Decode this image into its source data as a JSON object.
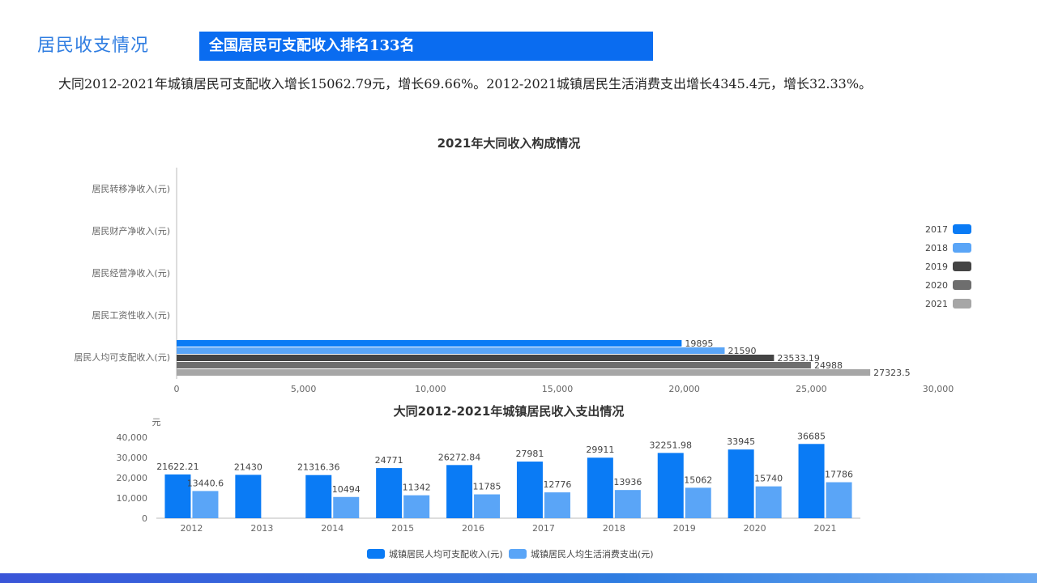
{
  "header": {
    "section_title": "居民收支情况",
    "banner": "全国居民可支配收入排名133名"
  },
  "summary": "大同2012-2021年城镇居民可支配收入增长15062.79元，增长69.66%。2012-2021城镇居民生活消费支出增长4345.4元，增长32.33%。",
  "colors": {
    "accent": "#2f7de1",
    "banner": "#0a6cf0",
    "series_income": "#0a7bf5",
    "series_expense": "#5aa5f7"
  },
  "chart_data": [
    {
      "type": "bar",
      "orientation": "horizontal",
      "title": "2021年大同收入构成情况",
      "categories": [
        "居民人均可支配收入(元)",
        "居民工资性收入(元)",
        "居民经营净收入(元)",
        "居民财产净收入(元)",
        "居民转移净收入(元)"
      ],
      "series": [
        {
          "name": "2017",
          "color": "#0a7bf5",
          "values": [
            19895,
            null,
            null,
            null,
            null
          ],
          "labels": [
            "19895"
          ]
        },
        {
          "name": "2018",
          "color": "#5aa5f7",
          "values": [
            21590,
            null,
            null,
            null,
            null
          ],
          "labels": [
            "21590"
          ]
        },
        {
          "name": "2019",
          "color": "#444444",
          "values": [
            23533.19,
            null,
            null,
            null,
            null
          ],
          "labels": [
            "23533.19"
          ]
        },
        {
          "name": "2020",
          "color": "#6e6e6e",
          "values": [
            24988,
            null,
            null,
            null,
            null
          ],
          "labels": [
            "24988"
          ]
        },
        {
          "name": "2021",
          "color": "#a6a6a6",
          "values": [
            27323.5,
            null,
            null,
            null,
            null
          ],
          "labels": [
            "27323.5"
          ]
        }
      ],
      "xlim": [
        0,
        30000
      ],
      "xticks": [
        "0",
        "5,000",
        "10,000",
        "15,000",
        "20,000",
        "25,000",
        "30,000"
      ],
      "legend": "right"
    },
    {
      "type": "bar",
      "title": "大同2012-2021年城镇居民收入支出情况",
      "yunit": "元",
      "categories": [
        "2012",
        "2013",
        "2014",
        "2015",
        "2016",
        "2017",
        "2018",
        "2019",
        "2020",
        "2021"
      ],
      "series": [
        {
          "name": "城镇居民人均可支配收入(元)",
          "color": "#0a7bf5",
          "values": [
            21622.21,
            21430,
            21316.36,
            24771,
            26272.84,
            27981,
            29911,
            32251.98,
            33945,
            36685
          ],
          "labels": [
            "21622.21",
            "21430",
            "21316.36",
            "24771",
            "26272.84",
            "27981",
            "29911",
            "32251.98",
            "33945",
            "36685"
          ]
        },
        {
          "name": "城镇居民人均生活消费支出(元)",
          "color": "#5aa5f7",
          "values": [
            13440.6,
            null,
            10494,
            11342,
            11785,
            12776,
            13936,
            15062,
            15740,
            17786
          ],
          "labels": [
            "13440.6",
            "",
            "10494",
            "11342",
            "11785",
            "12776",
            "13936",
            "15062",
            "15740",
            "17786"
          ]
        }
      ],
      "ylim": [
        0,
        40000
      ],
      "yticks": [
        "0",
        "10,000",
        "20,000",
        "30,000",
        "40,000"
      ],
      "legend": "bottom"
    }
  ]
}
